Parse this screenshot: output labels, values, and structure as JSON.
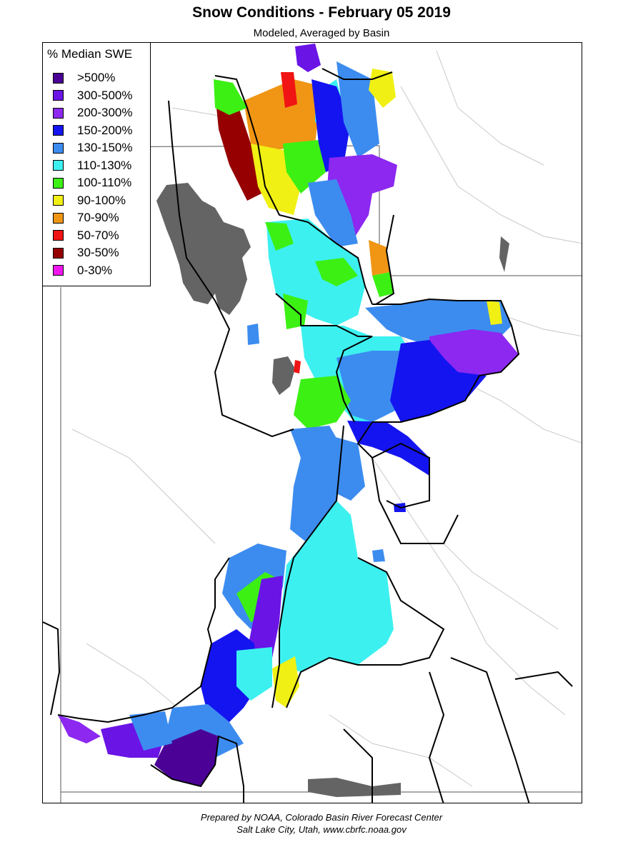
{
  "title": "Snow Conditions - February 05 2019",
  "subtitle": "Modeled, Averaged by Basin",
  "legend": {
    "title": "% Median SWE",
    "items": [
      {
        "label": ">500%",
        "color": "#4b0096"
      },
      {
        "label": "300-500%",
        "color": "#6a14e6"
      },
      {
        "label": "200-300%",
        "color": "#8c28f0"
      },
      {
        "label": "150-200%",
        "color": "#1414f0"
      },
      {
        "label": "130-150%",
        "color": "#3c8cf0"
      },
      {
        "label": "110-130%",
        "color": "#3cf0f0"
      },
      {
        "label": "100-110%",
        "color": "#3cf014"
      },
      {
        "label": "90-100%",
        "color": "#f0f014"
      },
      {
        "label": "70-90%",
        "color": "#f09614"
      },
      {
        "label": "50-70%",
        "color": "#f01414"
      },
      {
        "label": "30-50%",
        "color": "#960000"
      },
      {
        "label": "0-30%",
        "color": "#f014f0"
      }
    ]
  },
  "map": {
    "lake_color": "#646464",
    "border_color": "#000000",
    "river_color": "#c8c8c8"
  },
  "credits": {
    "line1": "Prepared by NOAA, Colorado Basin River Forecast Center",
    "line2": "Salt Lake City, Utah, www.cbrfc.noaa.gov"
  }
}
